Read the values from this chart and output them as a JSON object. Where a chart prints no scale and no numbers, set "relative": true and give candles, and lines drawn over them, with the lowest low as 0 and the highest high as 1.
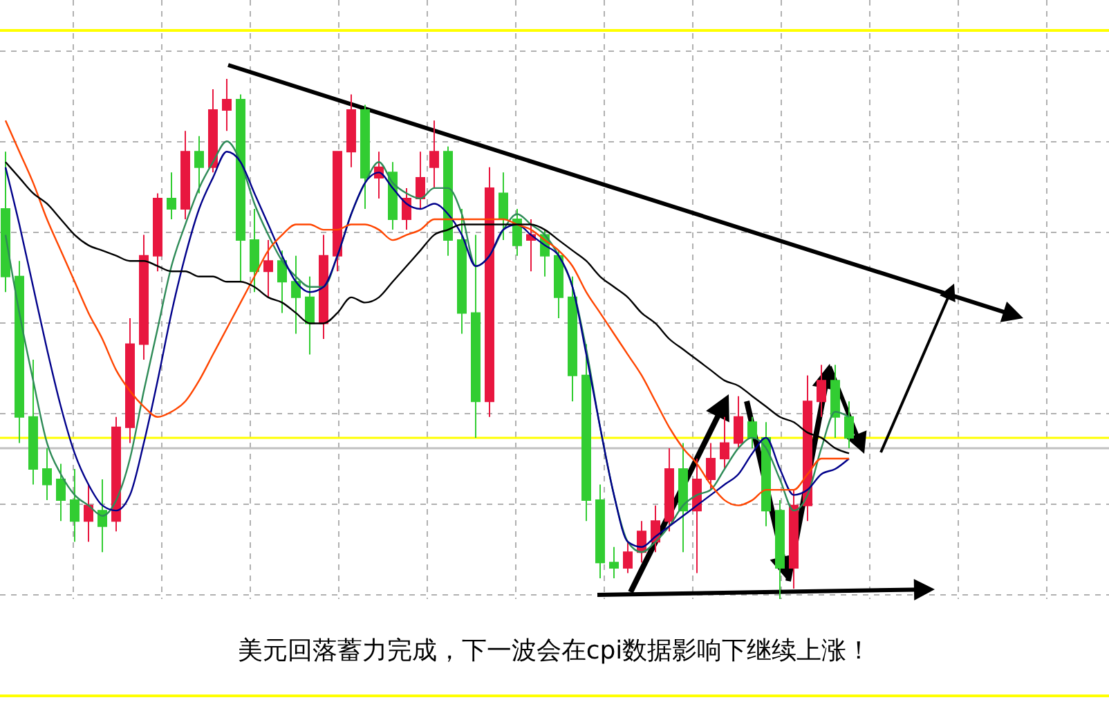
{
  "chart_data": {
    "type": "candlestick",
    "relative": true,
    "grid": true,
    "categories": [
      null,
      null,
      null,
      null,
      null,
      null,
      null,
      null,
      null,
      null,
      null,
      null,
      null,
      null,
      null,
      null,
      null,
      null,
      null,
      null,
      null,
      null,
      null,
      null,
      null,
      null,
      null,
      null,
      null,
      null,
      null,
      null,
      null,
      null,
      null,
      null,
      null,
      null,
      null,
      null,
      null,
      null,
      null,
      null,
      null,
      null,
      null,
      null,
      null,
      null,
      null,
      null,
      null,
      null,
      null,
      null,
      null,
      null,
      null,
      null,
      null,
      null
    ],
    "ohlc": [
      [
        0.75,
        0.86,
        0.59,
        0.62
      ],
      [
        0.62,
        0.65,
        0.3,
        0.35
      ],
      [
        0.35,
        0.46,
        0.22,
        0.25
      ],
      [
        0.25,
        0.29,
        0.19,
        0.22
      ],
      [
        0.23,
        0.26,
        0.15,
        0.19
      ],
      [
        0.19,
        0.25,
        0.11,
        0.15
      ],
      [
        0.15,
        0.22,
        0.11,
        0.18
      ],
      [
        0.17,
        0.23,
        0.09,
        0.14
      ],
      [
        0.15,
        0.35,
        0.13,
        0.33
      ],
      [
        0.33,
        0.54,
        0.3,
        0.49
      ],
      [
        0.49,
        0.7,
        0.46,
        0.66
      ],
      [
        0.66,
        0.78,
        0.63,
        0.77
      ],
      [
        0.77,
        0.82,
        0.73,
        0.75
      ],
      [
        0.75,
        0.9,
        0.73,
        0.86
      ],
      [
        0.86,
        0.89,
        0.78,
        0.83
      ],
      [
        0.83,
        0.98,
        0.82,
        0.94
      ],
      [
        0.94,
        1.0,
        0.9,
        0.96
      ],
      [
        0.96,
        0.97,
        0.61,
        0.69
      ],
      [
        0.69,
        0.75,
        0.59,
        0.63
      ],
      [
        0.63,
        0.69,
        0.58,
        0.65
      ],
      [
        0.65,
        0.67,
        0.55,
        0.61
      ],
      [
        0.61,
        0.66,
        0.51,
        0.58
      ],
      [
        0.58,
        0.62,
        0.47,
        0.53
      ],
      [
        0.53,
        0.7,
        0.5,
        0.66
      ],
      [
        0.66,
        0.86,
        0.63,
        0.86
      ],
      [
        0.86,
        0.97,
        0.83,
        0.94
      ],
      [
        0.94,
        0.95,
        0.75,
        0.81
      ],
      [
        0.81,
        0.86,
        0.77,
        0.83
      ],
      [
        0.82,
        0.84,
        0.71,
        0.73
      ],
      [
        0.73,
        0.79,
        0.71,
        0.77
      ],
      [
        0.77,
        0.86,
        0.75,
        0.81
      ],
      [
        0.83,
        0.92,
        0.79,
        0.86
      ],
      [
        0.86,
        0.87,
        0.66,
        0.69
      ],
      [
        0.69,
        0.75,
        0.51,
        0.55
      ],
      [
        0.55,
        0.7,
        0.31,
        0.38
      ],
      [
        0.38,
        0.83,
        0.35,
        0.79
      ],
      [
        0.78,
        0.82,
        0.69,
        0.73
      ],
      [
        0.73,
        0.75,
        0.66,
        0.68
      ],
      [
        0.69,
        0.73,
        0.63,
        0.7
      ],
      [
        0.7,
        0.71,
        0.62,
        0.66
      ],
      [
        0.66,
        0.67,
        0.54,
        0.58
      ],
      [
        0.58,
        0.62,
        0.38,
        0.43
      ],
      [
        0.43,
        0.49,
        0.15,
        0.19
      ],
      [
        0.19,
        0.22,
        0.04,
        0.07
      ],
      [
        0.07,
        0.1,
        0.04,
        0.06
      ],
      [
        0.06,
        0.11,
        0.05,
        0.09
      ],
      [
        0.09,
        0.15,
        0.07,
        0.13
      ],
      [
        0.11,
        0.18,
        0.09,
        0.15
      ],
      [
        0.15,
        0.29,
        0.13,
        0.25
      ],
      [
        0.25,
        0.3,
        0.09,
        0.17
      ],
      [
        0.17,
        0.27,
        0.05,
        0.23
      ],
      [
        0.23,
        0.3,
        0.21,
        0.27
      ],
      [
        0.27,
        0.35,
        0.25,
        0.3
      ],
      [
        0.3,
        0.39,
        0.29,
        0.35
      ],
      [
        0.34,
        0.35,
        0.29,
        0.31
      ],
      [
        0.31,
        0.34,
        0.14,
        0.17
      ],
      [
        0.17,
        0.19,
        0.0,
        0.06
      ],
      [
        0.06,
        0.21,
        0.02,
        0.18
      ],
      [
        0.18,
        0.43,
        0.15,
        0.38
      ],
      [
        0.38,
        0.45,
        0.35,
        0.42
      ],
      [
        0.42,
        0.45,
        0.31,
        0.35
      ],
      [
        0.35,
        0.38,
        0.29,
        0.31
      ]
    ],
    "series": [
      {
        "type": "line",
        "color": "#2e8b57",
        "values": [
          0.7,
          0.55,
          0.42,
          0.3,
          0.24,
          0.2,
          0.18,
          0.16,
          0.19,
          0.27,
          0.4,
          0.52,
          0.64,
          0.72,
          0.79,
          0.84,
          0.88,
          0.84,
          0.76,
          0.7,
          0.65,
          0.62,
          0.6,
          0.6,
          0.66,
          0.74,
          0.8,
          0.84,
          0.8,
          0.78,
          0.77,
          0.79,
          0.79,
          0.74,
          0.64,
          0.66,
          0.71,
          0.74,
          0.72,
          0.7,
          0.66,
          0.6,
          0.48,
          0.33,
          0.2,
          0.11,
          0.09,
          0.11,
          0.14,
          0.18,
          0.2,
          0.21,
          0.25,
          0.29,
          0.31,
          0.29,
          0.23,
          0.17,
          0.2,
          0.29,
          0.36,
          0.35
        ]
      },
      {
        "type": "line",
        "color": "#00008b",
        "values": [
          0.83,
          0.72,
          0.6,
          0.48,
          0.37,
          0.28,
          0.22,
          0.18,
          0.17,
          0.2,
          0.3,
          0.42,
          0.55,
          0.66,
          0.75,
          0.81,
          0.86,
          0.84,
          0.78,
          0.72,
          0.66,
          0.61,
          0.59,
          0.6,
          0.66,
          0.74,
          0.8,
          0.82,
          0.79,
          0.76,
          0.75,
          0.76,
          0.74,
          0.7,
          0.64,
          0.66,
          0.71,
          0.72,
          0.7,
          0.68,
          0.66,
          0.6,
          0.47,
          0.33,
          0.2,
          0.11,
          0.1,
          0.12,
          0.14,
          0.16,
          0.18,
          0.2,
          0.22,
          0.24,
          0.28,
          0.31,
          0.25,
          0.2,
          0.21,
          0.24,
          0.25,
          0.27
        ]
      },
      {
        "type": "line",
        "color": "#ff4500",
        "values": [
          0.92,
          0.86,
          0.8,
          0.73,
          0.67,
          0.61,
          0.55,
          0.5,
          0.44,
          0.4,
          0.37,
          0.35,
          0.36,
          0.38,
          0.42,
          0.47,
          0.52,
          0.57,
          0.62,
          0.67,
          0.7,
          0.72,
          0.72,
          0.71,
          0.71,
          0.72,
          0.72,
          0.71,
          0.69,
          0.7,
          0.71,
          0.73,
          0.73,
          0.73,
          0.73,
          0.73,
          0.73,
          0.72,
          0.71,
          0.69,
          0.67,
          0.64,
          0.59,
          0.55,
          0.51,
          0.47,
          0.43,
          0.38,
          0.33,
          0.29,
          0.26,
          0.22,
          0.19,
          0.18,
          0.19,
          0.21,
          0.21,
          0.21,
          0.24,
          0.27,
          0.27,
          0.27
        ]
      },
      {
        "type": "line",
        "color": "#000000",
        "values": [
          0.84,
          0.81,
          0.78,
          0.76,
          0.73,
          0.7,
          0.68,
          0.67,
          0.66,
          0.65,
          0.65,
          0.64,
          0.63,
          0.63,
          0.62,
          0.62,
          0.61,
          0.61,
          0.6,
          0.58,
          0.57,
          0.55,
          0.53,
          0.53,
          0.55,
          0.58,
          0.57,
          0.58,
          0.61,
          0.64,
          0.67,
          0.7,
          0.71,
          0.72,
          0.72,
          0.72,
          0.72,
          0.72,
          0.72,
          0.71,
          0.69,
          0.67,
          0.65,
          0.62,
          0.6,
          0.58,
          0.55,
          0.53,
          0.5,
          0.48,
          0.46,
          0.44,
          0.42,
          0.41,
          0.39,
          0.37,
          0.35,
          0.34,
          0.32,
          0.31,
          0.29,
          0.28
        ]
      }
    ],
    "ref_lines": [
      {
        "axis": "y",
        "value": 0.31,
        "color": "#ffff00"
      },
      {
        "axis": "y",
        "value": 0.29,
        "color": "#c0c0c0"
      }
    ],
    "annotations": [
      "美元回落蓄力完成，下一波会在cpi数据影响下继续上涨！"
    ]
  }
}
